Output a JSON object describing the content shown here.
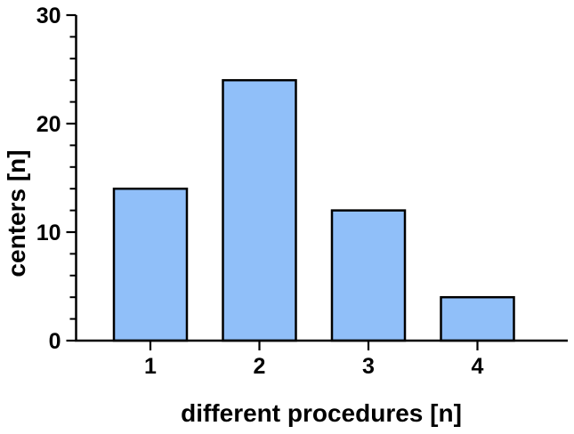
{
  "figure": {
    "background": "#ffffff"
  },
  "chart_data": {
    "type": "bar",
    "title": "",
    "categories": [
      "1",
      "2",
      "3",
      "4"
    ],
    "values": [
      14,
      24,
      12,
      4
    ],
    "xlabel": "different procedures [n]",
    "ylabel": "centers [n]",
    "ylim": [
      0,
      30
    ],
    "y_major_ticks": [
      0,
      10,
      20,
      30
    ],
    "y_major_tick_labels": [
      "0",
      "10",
      "20",
      "30"
    ],
    "y_minor_tick_step": 2,
    "grid": false,
    "legend": false,
    "colors": {
      "bar_fill": "#90BFF9",
      "bar_stroke": "#000000",
      "axis": "#000000",
      "text": "#000000"
    }
  }
}
